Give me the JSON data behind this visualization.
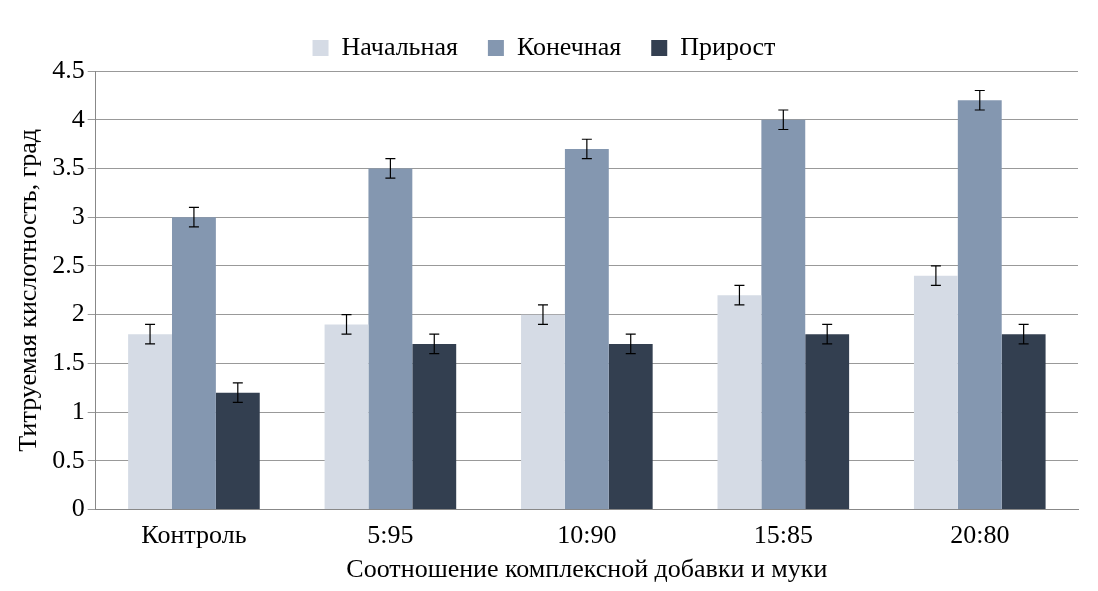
{
  "chart_data": {
    "type": "bar",
    "xlabel": "Соотношение комплексной добавки и муки",
    "ylabel": "Титруемая кислотность, град",
    "categories": [
      "Контроль",
      "5:95",
      "10:90",
      "15:85",
      "20:80"
    ],
    "series": [
      {
        "name": "Начальная",
        "color": "#d5dbe5",
        "values": [
          1.8,
          1.9,
          2.0,
          2.2,
          2.4
        ],
        "errors": [
          0.1,
          0.1,
          0.1,
          0.1,
          0.1
        ]
      },
      {
        "name": "Конечная",
        "color": "#8497b0",
        "values": [
          3.0,
          3.5,
          3.7,
          4.0,
          4.2
        ],
        "errors": [
          0.1,
          0.1,
          0.1,
          0.1,
          0.1
        ]
      },
      {
        "name": "Прирост",
        "color": "#333f50",
        "values": [
          1.2,
          1.7,
          1.7,
          1.8,
          1.8
        ],
        "errors": [
          0.1,
          0.1,
          0.1,
          0.1,
          0.1
        ]
      }
    ],
    "ylim": [
      0,
      4.5
    ],
    "yticks": [
      0,
      0.5,
      1,
      1.5,
      2,
      2.5,
      3,
      3.5,
      4,
      4.5
    ],
    "grid": "y",
    "legend": "top"
  }
}
